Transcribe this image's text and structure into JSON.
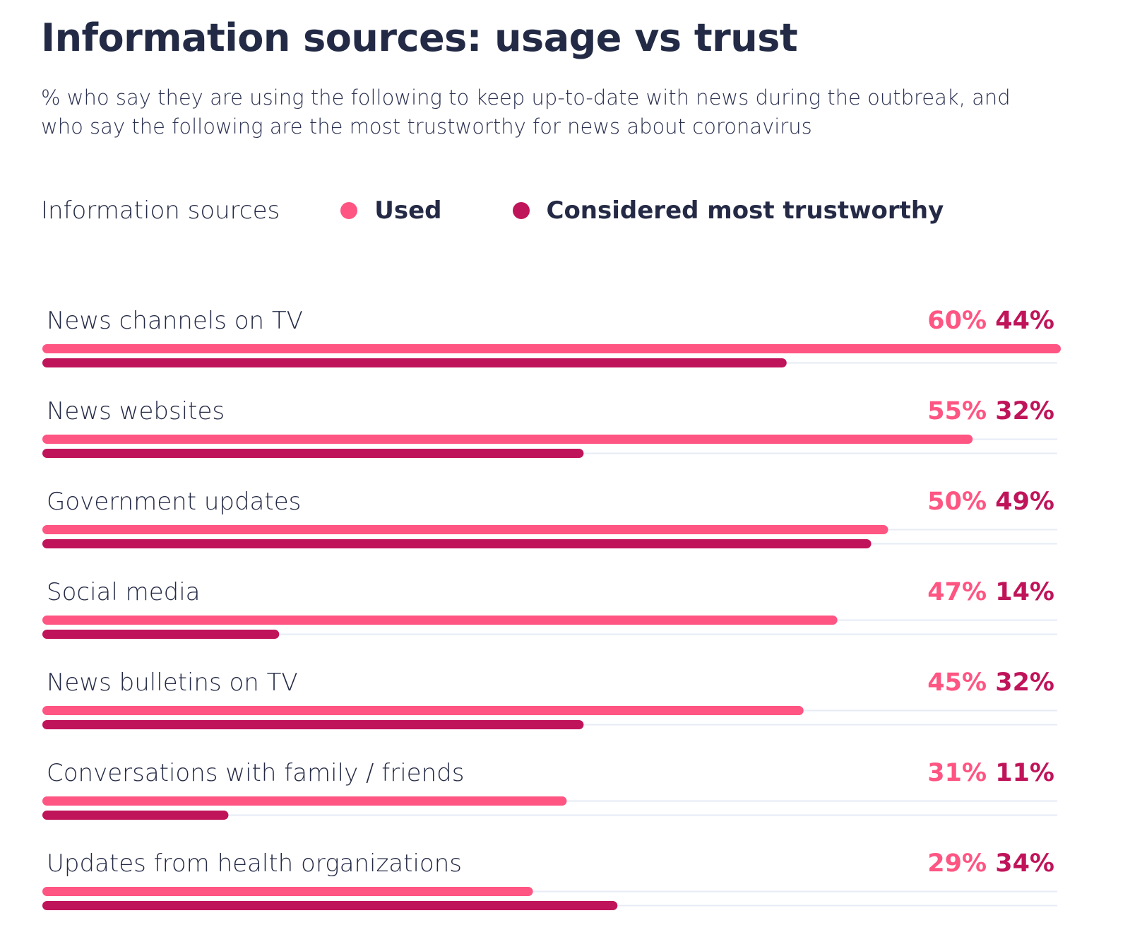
{
  "chart_data": {
    "type": "bar",
    "orientation": "horizontal",
    "title": "Information sources: usage vs trust",
    "subtitle": "% who say they are using the following to keep up-to-date with news during the outbreak, and who say the following are the most trustworthy for news about coronavirus",
    "legend_title": "Information sources",
    "legend_placement": "top-left",
    "xlim": [
      0,
      60
    ],
    "grid": false,
    "categories": [
      "News channels on TV",
      "News websites",
      "Government updates",
      "Social media",
      "News bulletins on TV",
      "Conversations with family / friends",
      "Updates from health organizations"
    ],
    "series": [
      {
        "name": "Used",
        "color": "#fe5582",
        "values": [
          60,
          55,
          50,
          47,
          45,
          31,
          29
        ],
        "labels": [
          "60%",
          "55%",
          "50%",
          "47%",
          "45%",
          "31%",
          "29%"
        ]
      },
      {
        "name": "Considered most trustworthy",
        "color": "#c0145a",
        "values": [
          44,
          32,
          49,
          14,
          32,
          11,
          34
        ],
        "labels": [
          "44%",
          "32%",
          "49%",
          "14%",
          "32%",
          "11%",
          "34%"
        ]
      }
    ],
    "track_color": "#e6ebf5"
  }
}
